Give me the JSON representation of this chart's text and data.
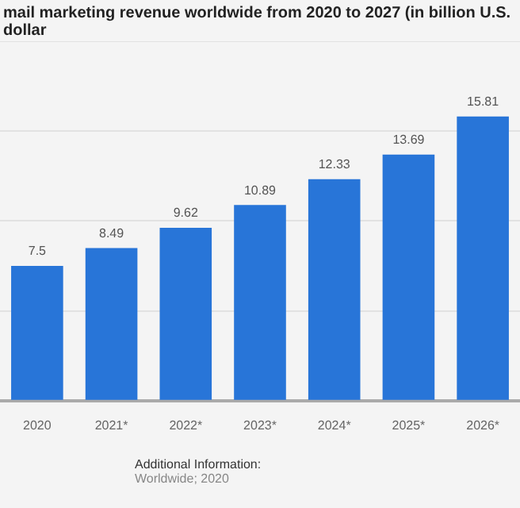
{
  "chart_data": {
    "type": "bar",
    "title": "mail marketing revenue worldwide from 2020 to 2027 (in billion U.S. dollar",
    "categories": [
      "2020",
      "2021*",
      "2022*",
      "2023*",
      "2024*",
      "2025*",
      "2026*"
    ],
    "values": [
      7.5,
      8.49,
      9.62,
      10.89,
      12.33,
      13.69,
      15.81
    ],
    "color": "#2875d8",
    "ylim": [
      0,
      20
    ],
    "yticks": [
      {
        "value": 0,
        "label": null
      },
      {
        "value": 5,
        "label": null
      },
      {
        "value": 10,
        "label": null
      },
      {
        "value": 15,
        "label": null
      },
      {
        "value": 20,
        "label": null
      }
    ],
    "tick_labels": "x",
    "grid": "y",
    "data_labels": true,
    "annotations": [
      "Additional Information:",
      "Worldwide; 2020"
    ]
  }
}
